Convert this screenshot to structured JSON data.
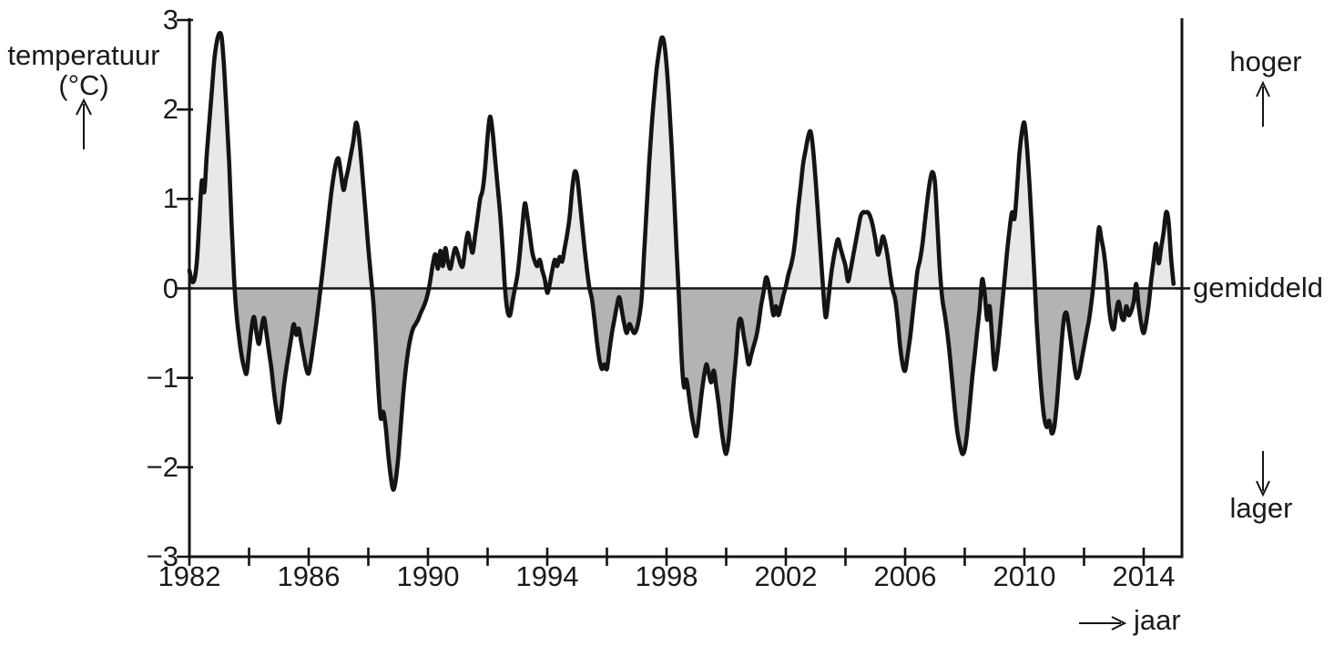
{
  "chart": {
    "y_axis_title_line1": "temperatuur",
    "y_axis_title_line2": "(°C)",
    "x_axis_label": "jaar",
    "right_label_top": "hoger",
    "right_label_middle": "gemiddeld",
    "right_label_bottom": "lager",
    "y_tick_labels": [
      "3",
      "2",
      "1",
      "0",
      "−1",
      "−2",
      "−3"
    ],
    "x_tick_labels": [
      "1982",
      "1986",
      "1990",
      "1994",
      "1998",
      "2002",
      "2006",
      "2010",
      "2014"
    ]
  },
  "chart_data": {
    "type": "area",
    "title": "",
    "xlabel": "jaar",
    "ylabel": "temperatuur (°C)",
    "xlim": [
      1982,
      2015.3
    ],
    "ylim": [
      -3,
      3
    ],
    "grid": false,
    "y_ticks": [
      3,
      2,
      1,
      0,
      -1,
      -2,
      -3
    ],
    "x_major_ticks": [
      1982,
      1986,
      1990,
      1994,
      1998,
      2002,
      2006,
      2010,
      2014
    ],
    "x_all_ticks": [
      1982,
      1984,
      1986,
      1988,
      1990,
      1992,
      1994,
      1996,
      1998,
      2000,
      2002,
      2004,
      2006,
      2008,
      2010,
      2012,
      2014
    ],
    "baseline_value": 0,
    "annotations": {
      "above_zero": "hoger",
      "at_zero": "gemiddeld",
      "below_zero": "lager"
    },
    "colors": {
      "line": "#141414",
      "fill_above": "#e8e8e8",
      "fill_below": "#b3b3b3",
      "axis": "#141414"
    },
    "series": [
      {
        "x_start": 1982.0,
        "x_step_years": 0.0833333,
        "values": [
          0.2,
          0.08,
          0.1,
          0.3,
          0.75,
          1.2,
          1.08,
          1.5,
          1.85,
          2.2,
          2.55,
          2.75,
          2.85,
          2.8,
          2.45,
          1.95,
          1.4,
          0.7,
          0.1,
          -0.3,
          -0.55,
          -0.75,
          -0.88,
          -0.95,
          -0.7,
          -0.45,
          -0.32,
          -0.5,
          -0.62,
          -0.45,
          -0.33,
          -0.5,
          -0.7,
          -0.9,
          -1.15,
          -1.35,
          -1.5,
          -1.35,
          -1.1,
          -0.9,
          -0.72,
          -0.55,
          -0.4,
          -0.52,
          -0.45,
          -0.6,
          -0.75,
          -0.9,
          -0.95,
          -0.8,
          -0.6,
          -0.4,
          -0.18,
          0.05,
          0.3,
          0.55,
          0.8,
          1.05,
          1.25,
          1.4,
          1.45,
          1.28,
          1.1,
          1.22,
          1.35,
          1.5,
          1.65,
          1.85,
          1.75,
          1.48,
          1.15,
          0.8,
          0.45,
          0.15,
          -0.15,
          -0.6,
          -1.1,
          -1.45,
          -1.38,
          -1.55,
          -1.85,
          -2.1,
          -2.25,
          -2.15,
          -1.9,
          -1.55,
          -1.2,
          -0.92,
          -0.7,
          -0.55,
          -0.45,
          -0.4,
          -0.35,
          -0.28,
          -0.22,
          -0.15,
          -0.05,
          0.1,
          0.28,
          0.38,
          0.22,
          0.42,
          0.25,
          0.45,
          0.3,
          0.22,
          0.35,
          0.45,
          0.38,
          0.28,
          0.25,
          0.45,
          0.62,
          0.5,
          0.4,
          0.6,
          0.8,
          1.0,
          1.1,
          1.35,
          1.7,
          1.92,
          1.75,
          1.45,
          1.15,
          0.85,
          0.45,
          0.0,
          -0.25,
          -0.3,
          -0.15,
          0.0,
          0.15,
          0.4,
          0.7,
          0.95,
          0.8,
          0.6,
          0.4,
          0.3,
          0.25,
          0.32,
          0.2,
          0.1,
          -0.05,
          0.05,
          0.2,
          0.32,
          0.25,
          0.35,
          0.3,
          0.45,
          0.6,
          0.8,
          1.1,
          1.3,
          1.25,
          1.0,
          0.72,
          0.45,
          0.2,
          0.0,
          -0.12,
          -0.35,
          -0.6,
          -0.8,
          -0.9,
          -0.85,
          -0.9,
          -0.7,
          -0.5,
          -0.35,
          -0.2,
          -0.1,
          -0.25,
          -0.4,
          -0.5,
          -0.4,
          -0.45,
          -0.5,
          -0.45,
          -0.32,
          -0.1,
          0.4,
          0.9,
          1.4,
          1.8,
          2.15,
          2.45,
          2.65,
          2.8,
          2.75,
          2.5,
          2.1,
          1.6,
          1.05,
          0.45,
          -0.1,
          -0.75,
          -1.1,
          -1.02,
          -1.2,
          -1.4,
          -1.55,
          -1.65,
          -1.45,
          -1.2,
          -1.0,
          -0.85,
          -0.95,
          -1.05,
          -0.92,
          -1.1,
          -1.3,
          -1.55,
          -1.75,
          -1.85,
          -1.7,
          -1.4,
          -1.05,
          -0.75,
          -0.4,
          -0.35,
          -0.52,
          -0.68,
          -0.85,
          -0.75,
          -0.65,
          -0.55,
          -0.4,
          -0.2,
          -0.05,
          0.12,
          0.05,
          -0.12,
          -0.3,
          -0.2,
          -0.3,
          -0.2,
          -0.08,
          0.02,
          0.15,
          0.25,
          0.38,
          0.6,
          0.9,
          1.15,
          1.4,
          1.55,
          1.7,
          1.75,
          1.55,
          1.2,
          0.8,
          0.4,
          0.0,
          -0.32,
          -0.15,
          0.1,
          0.3,
          0.45,
          0.55,
          0.45,
          0.35,
          0.25,
          0.08,
          0.2,
          0.35,
          0.5,
          0.65,
          0.8,
          0.85,
          0.85,
          0.85,
          0.8,
          0.7,
          0.55,
          0.38,
          0.45,
          0.58,
          0.5,
          0.35,
          0.15,
          -0.02,
          -0.12,
          -0.35,
          -0.65,
          -0.85,
          -0.92,
          -0.75,
          -0.55,
          -0.3,
          -0.05,
          0.2,
          0.32,
          0.5,
          0.75,
          1.0,
          1.2,
          1.3,
          1.18,
          0.7,
          0.2,
          -0.12,
          -0.3,
          -0.5,
          -0.75,
          -1.05,
          -1.35,
          -1.6,
          -1.75,
          -1.85,
          -1.8,
          -1.6,
          -1.3,
          -1.0,
          -0.75,
          -0.48,
          -0.22,
          0.1,
          -0.05,
          -0.35,
          -0.2,
          -0.55,
          -0.9,
          -0.75,
          -0.5,
          -0.2,
          0.1,
          0.4,
          0.65,
          0.85,
          0.78,
          1.1,
          1.5,
          1.75,
          1.85,
          1.6,
          1.18,
          0.68,
          0.15,
          -0.4,
          -0.85,
          -1.2,
          -1.45,
          -1.55,
          -1.48,
          -1.62,
          -1.55,
          -1.3,
          -0.95,
          -0.6,
          -0.32,
          -0.28,
          -0.45,
          -0.65,
          -0.85,
          -1.0,
          -0.95,
          -0.8,
          -0.65,
          -0.5,
          -0.35,
          -0.15,
          0.1,
          0.4,
          0.68,
          0.55,
          0.4,
          0.15,
          -0.2,
          -0.4,
          -0.45,
          -0.25,
          -0.15,
          -0.3,
          -0.35,
          -0.2,
          -0.3,
          -0.25,
          -0.15,
          0.05,
          -0.2,
          -0.4,
          -0.5,
          -0.38,
          -0.18,
          0.08,
          0.3,
          0.5,
          0.28,
          0.45,
          0.62,
          0.85,
          0.75,
          0.35,
          0.05
        ]
      }
    ]
  }
}
